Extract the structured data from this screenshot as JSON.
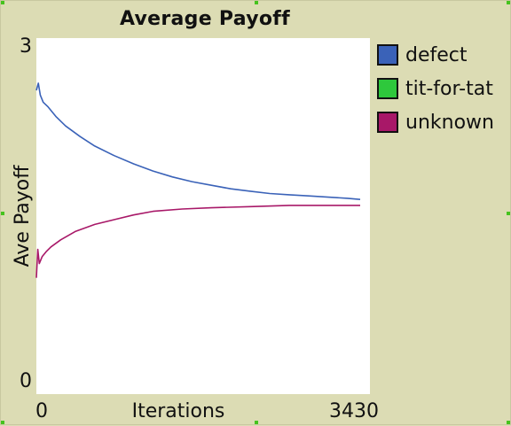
{
  "chart_data": {
    "type": "line",
    "title": "Average Payoff",
    "xlabel": "Iterations",
    "ylabel": "Ave Payoff",
    "xlim": [
      0,
      3430
    ],
    "ylim": [
      0,
      3
    ],
    "x_tick_labels": [
      "0",
      "3430"
    ],
    "y_tick_labels": [
      "0",
      "3"
    ],
    "background": "#dcdcb4",
    "plot_background": "#ffffff",
    "series": [
      {
        "name": "defect",
        "color": "#3a62b8",
        "points": [
          [
            0,
            2.56
          ],
          [
            20,
            2.62
          ],
          [
            40,
            2.52
          ],
          [
            70,
            2.46
          ],
          [
            120,
            2.42
          ],
          [
            200,
            2.34
          ],
          [
            300,
            2.26
          ],
          [
            450,
            2.17
          ],
          [
            600,
            2.09
          ],
          [
            800,
            2.01
          ],
          [
            1000,
            1.94
          ],
          [
            1200,
            1.88
          ],
          [
            1400,
            1.83
          ],
          [
            1600,
            1.79
          ],
          [
            1800,
            1.76
          ],
          [
            2000,
            1.73
          ],
          [
            2200,
            1.71
          ],
          [
            2400,
            1.69
          ],
          [
            2600,
            1.68
          ],
          [
            2800,
            1.67
          ],
          [
            3000,
            1.66
          ],
          [
            3200,
            1.65
          ],
          [
            3330,
            1.64
          ]
        ]
      },
      {
        "name": "tit-for-tat",
        "color": "#2ec83c",
        "points": []
      },
      {
        "name": "unknown",
        "color": "#a81868",
        "points": [
          [
            0,
            0.98
          ],
          [
            15,
            1.22
          ],
          [
            30,
            1.1
          ],
          [
            60,
            1.16
          ],
          [
            100,
            1.2
          ],
          [
            150,
            1.24
          ],
          [
            250,
            1.3
          ],
          [
            400,
            1.37
          ],
          [
            600,
            1.43
          ],
          [
            800,
            1.47
          ],
          [
            1000,
            1.51
          ],
          [
            1200,
            1.54
          ],
          [
            1500,
            1.56
          ],
          [
            1800,
            1.57
          ],
          [
            2200,
            1.58
          ],
          [
            2600,
            1.59
          ],
          [
            3000,
            1.59
          ],
          [
            3330,
            1.59
          ]
        ]
      }
    ]
  }
}
